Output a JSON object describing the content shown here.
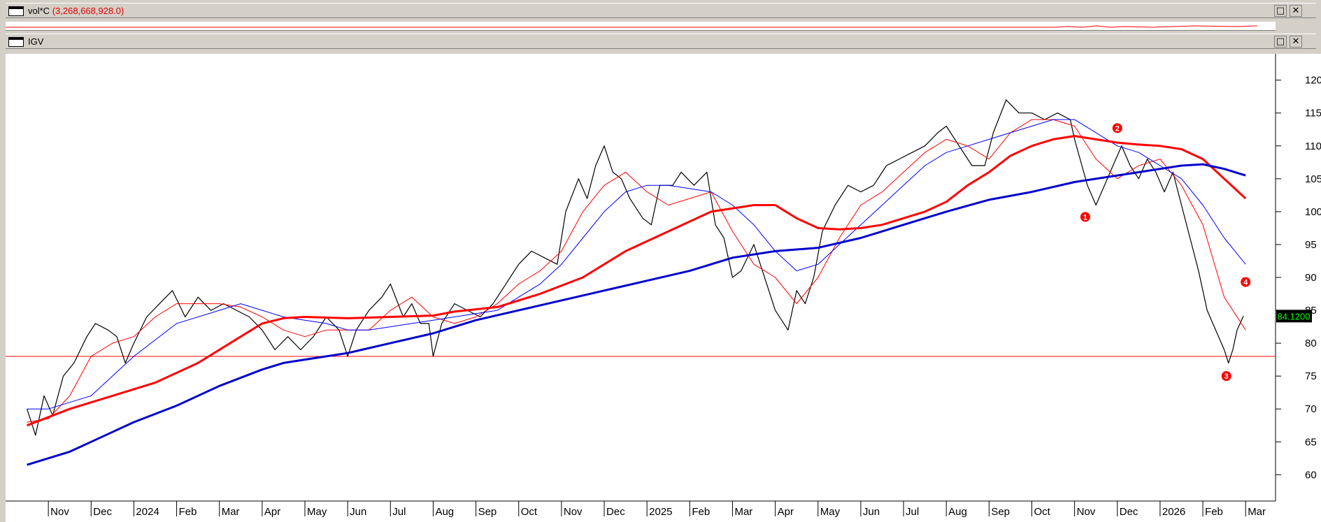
{
  "windows": {
    "volume": {
      "title": "vol*C",
      "value": "(3,268,668,928.0)"
    },
    "price": {
      "title": "IGV"
    }
  },
  "buttons": {
    "maximize": "□",
    "close": "✕"
  },
  "colors": {
    "price": "#000000",
    "ma_fast": "#ff0000",
    "ma_mid": "#0000ff",
    "ma_slow_red": "#ff0000",
    "ma_slow_blue": "#0000cc",
    "support": "#ff0000",
    "last_bg": "#000000",
    "last_fg": "#00ff00"
  },
  "chart_data": {
    "type": "line",
    "title": "IGV",
    "ylim": [
      56,
      124
    ],
    "y_ticks": [
      60,
      65,
      70,
      75,
      80,
      85,
      90,
      95,
      100,
      105,
      110,
      115,
      120
    ],
    "x_ticks": [
      "Nov",
      "Dec",
      "2024",
      "Feb",
      "Mar",
      "Apr",
      "May",
      "Jun",
      "Jul",
      "Aug",
      "Sep",
      "Oct",
      "Nov",
      "Dec",
      "2025",
      "Feb",
      "Mar",
      "Apr",
      "May",
      "Jun",
      "Jul",
      "Aug",
      "Sep",
      "Oct",
      "Nov",
      "Dec",
      "2026",
      "Feb",
      "Mar"
    ],
    "last_value": "84.1200",
    "support_level": 78,
    "markers": [
      {
        "label": "1",
        "month": 24.25,
        "y": 99.2
      },
      {
        "label": "2",
        "month": 25.0,
        "y": 112.7
      },
      {
        "label": "3",
        "month": 27.55,
        "y": 75.0
      },
      {
        "label": "4",
        "month": 28.0,
        "y": 89.3
      }
    ],
    "series": [
      {
        "role": "price",
        "points": [
          [
            -0.5,
            70
          ],
          [
            -0.3,
            66
          ],
          [
            -0.1,
            72
          ],
          [
            0.1,
            69
          ],
          [
            0.35,
            75
          ],
          [
            0.6,
            77
          ],
          [
            0.9,
            81
          ],
          [
            1.1,
            83
          ],
          [
            1.4,
            82
          ],
          [
            1.6,
            81
          ],
          [
            1.8,
            77
          ],
          [
            2.0,
            80
          ],
          [
            2.3,
            84
          ],
          [
            2.6,
            86
          ],
          [
            2.9,
            88
          ],
          [
            3.2,
            84
          ],
          [
            3.5,
            87
          ],
          [
            3.8,
            85
          ],
          [
            4.1,
            86
          ],
          [
            4.4,
            85
          ],
          [
            4.7,
            84
          ],
          [
            5.0,
            82
          ],
          [
            5.3,
            79
          ],
          [
            5.6,
            81
          ],
          [
            5.9,
            79
          ],
          [
            6.2,
            81
          ],
          [
            6.5,
            84
          ],
          [
            6.8,
            82
          ],
          [
            7.0,
            78
          ],
          [
            7.2,
            82
          ],
          [
            7.5,
            85
          ],
          [
            7.8,
            87
          ],
          [
            8.0,
            89
          ],
          [
            8.3,
            84
          ],
          [
            8.5,
            86
          ],
          [
            8.7,
            83
          ],
          [
            8.9,
            83
          ],
          [
            9.0,
            78
          ],
          [
            9.2,
            83
          ],
          [
            9.5,
            86
          ],
          [
            9.8,
            85
          ],
          [
            10.1,
            84
          ],
          [
            10.4,
            86
          ],
          [
            10.7,
            89
          ],
          [
            11.0,
            92
          ],
          [
            11.3,
            94
          ],
          [
            11.6,
            93
          ],
          [
            11.9,
            92
          ],
          [
            12.1,
            100
          ],
          [
            12.4,
            105
          ],
          [
            12.6,
            102
          ],
          [
            12.8,
            107
          ],
          [
            13.0,
            110
          ],
          [
            13.2,
            106
          ],
          [
            13.4,
            105
          ],
          [
            13.6,
            102
          ],
          [
            13.9,
            99
          ],
          [
            14.1,
            98
          ],
          [
            14.3,
            104
          ],
          [
            14.6,
            104
          ],
          [
            14.8,
            106
          ],
          [
            15.1,
            104
          ],
          [
            15.4,
            106
          ],
          [
            15.6,
            98
          ],
          [
            15.8,
            96
          ],
          [
            16.0,
            90
          ],
          [
            16.2,
            91
          ],
          [
            16.5,
            95
          ],
          [
            16.8,
            89
          ],
          [
            17.0,
            85
          ],
          [
            17.3,
            82
          ],
          [
            17.5,
            88
          ],
          [
            17.7,
            86
          ],
          [
            17.9,
            90
          ],
          [
            18.1,
            97
          ],
          [
            18.4,
            101
          ],
          [
            18.7,
            104
          ],
          [
            19.0,
            103
          ],
          [
            19.3,
            104
          ],
          [
            19.6,
            107
          ],
          [
            19.9,
            108
          ],
          [
            20.2,
            109
          ],
          [
            20.5,
            110
          ],
          [
            20.8,
            112
          ],
          [
            21.0,
            113
          ],
          [
            21.3,
            110
          ],
          [
            21.6,
            107
          ],
          [
            21.9,
            107
          ],
          [
            22.1,
            112
          ],
          [
            22.4,
            117
          ],
          [
            22.7,
            115
          ],
          [
            23.0,
            115
          ],
          [
            23.3,
            114
          ],
          [
            23.6,
            115
          ],
          [
            23.9,
            114
          ],
          [
            24.0,
            111
          ],
          [
            24.3,
            104
          ],
          [
            24.5,
            101
          ],
          [
            24.7,
            104
          ],
          [
            24.9,
            107
          ],
          [
            25.1,
            110
          ],
          [
            25.3,
            107
          ],
          [
            25.5,
            105
          ],
          [
            25.7,
            108
          ],
          [
            25.9,
            106
          ],
          [
            26.1,
            103
          ],
          [
            26.3,
            106
          ],
          [
            26.5,
            101
          ],
          [
            26.7,
            96
          ],
          [
            26.9,
            91
          ],
          [
            27.1,
            85
          ],
          [
            27.3,
            82
          ],
          [
            27.5,
            79
          ],
          [
            27.6,
            77
          ],
          [
            27.7,
            79
          ],
          [
            27.8,
            82
          ],
          [
            27.95,
            84.12
          ]
        ]
      },
      {
        "role": "ma_fast",
        "points": [
          [
            -0.5,
            68
          ],
          [
            0.0,
            68.5
          ],
          [
            0.5,
            72
          ],
          [
            1.0,
            78
          ],
          [
            1.5,
            80
          ],
          [
            2.0,
            81
          ],
          [
            2.5,
            84
          ],
          [
            3.0,
            86
          ],
          [
            3.5,
            86
          ],
          [
            4.0,
            86
          ],
          [
            4.5,
            85.5
          ],
          [
            5.0,
            84
          ],
          [
            5.5,
            82
          ],
          [
            6.0,
            81
          ],
          [
            6.5,
            82
          ],
          [
            7.0,
            82
          ],
          [
            7.5,
            82
          ],
          [
            8.0,
            85
          ],
          [
            8.5,
            87
          ],
          [
            9.0,
            84
          ],
          [
            9.5,
            83
          ],
          [
            10.0,
            84
          ],
          [
            10.5,
            86
          ],
          [
            11.0,
            89
          ],
          [
            11.5,
            91
          ],
          [
            12.0,
            94
          ],
          [
            12.5,
            100
          ],
          [
            13.0,
            104
          ],
          [
            13.5,
            106
          ],
          [
            14.0,
            103
          ],
          [
            14.5,
            101
          ],
          [
            15.0,
            102
          ],
          [
            15.5,
            103
          ],
          [
            16.0,
            97
          ],
          [
            16.5,
            92
          ],
          [
            17.0,
            90
          ],
          [
            17.5,
            86
          ],
          [
            18.0,
            90
          ],
          [
            18.5,
            96
          ],
          [
            19.0,
            101
          ],
          [
            19.5,
            103
          ],
          [
            20.0,
            106
          ],
          [
            20.5,
            109
          ],
          [
            21.0,
            111
          ],
          [
            21.5,
            110
          ],
          [
            22.0,
            108
          ],
          [
            22.5,
            112
          ],
          [
            23.0,
            114
          ],
          [
            23.5,
            114
          ],
          [
            24.0,
            113
          ],
          [
            24.5,
            108
          ],
          [
            25.0,
            105
          ],
          [
            25.5,
            107
          ],
          [
            26.0,
            108
          ],
          [
            26.5,
            104
          ],
          [
            27.0,
            98
          ],
          [
            27.5,
            87
          ],
          [
            28.0,
            82
          ]
        ]
      },
      {
        "role": "ma_mid",
        "points": [
          [
            -0.5,
            70
          ],
          [
            0.0,
            70
          ],
          [
            1.0,
            72
          ],
          [
            2.0,
            78
          ],
          [
            3.0,
            83
          ],
          [
            4.0,
            85
          ],
          [
            4.5,
            86
          ],
          [
            5.0,
            85
          ],
          [
            5.5,
            84
          ],
          [
            6.0,
            83.5
          ],
          [
            6.5,
            83
          ],
          [
            7.0,
            82
          ],
          [
            7.5,
            82
          ],
          [
            8.0,
            82.5
          ],
          [
            8.5,
            83
          ],
          [
            9.0,
            83.5
          ],
          [
            9.5,
            84
          ],
          [
            10.0,
            84.5
          ],
          [
            10.5,
            85
          ],
          [
            11.0,
            87
          ],
          [
            11.5,
            89
          ],
          [
            12.0,
            92
          ],
          [
            12.5,
            96
          ],
          [
            13.0,
            100
          ],
          [
            13.5,
            103
          ],
          [
            14.0,
            104
          ],
          [
            14.5,
            104
          ],
          [
            15.0,
            103.5
          ],
          [
            15.5,
            103
          ],
          [
            16.0,
            101
          ],
          [
            16.5,
            98
          ],
          [
            17.0,
            94
          ],
          [
            17.5,
            91
          ],
          [
            18.0,
            92
          ],
          [
            18.5,
            95
          ],
          [
            19.0,
            98
          ],
          [
            19.5,
            101
          ],
          [
            20.0,
            104
          ],
          [
            20.5,
            107
          ],
          [
            21.0,
            109
          ],
          [
            21.5,
            110
          ],
          [
            22.0,
            111
          ],
          [
            22.5,
            112
          ],
          [
            23.0,
            113
          ],
          [
            23.5,
            114
          ],
          [
            24.0,
            114
          ],
          [
            24.5,
            112
          ],
          [
            25.0,
            110
          ],
          [
            25.5,
            109
          ],
          [
            26.0,
            107
          ],
          [
            26.5,
            105
          ],
          [
            27.0,
            101
          ],
          [
            27.5,
            96
          ],
          [
            28.0,
            92
          ]
        ]
      },
      {
        "role": "ma_slow_red",
        "points": [
          [
            -0.5,
            67.5
          ],
          [
            0.5,
            70
          ],
          [
            1.5,
            72
          ],
          [
            2.5,
            74
          ],
          [
            3.5,
            77
          ],
          [
            4.5,
            81
          ],
          [
            5.0,
            83
          ],
          [
            5.5,
            83.8
          ],
          [
            6.0,
            84
          ],
          [
            7.0,
            83.8
          ],
          [
            8.0,
            84
          ],
          [
            9.0,
            84.2
          ],
          [
            9.5,
            84.8
          ],
          [
            10.5,
            85.5
          ],
          [
            11.5,
            87.5
          ],
          [
            12.5,
            90
          ],
          [
            13.5,
            94
          ],
          [
            14.5,
            97
          ],
          [
            15.5,
            100
          ],
          [
            16.5,
            101
          ],
          [
            17.0,
            101
          ],
          [
            17.5,
            99
          ],
          [
            18.0,
            97.5
          ],
          [
            18.5,
            97.3
          ],
          [
            19.0,
            97.5
          ],
          [
            19.5,
            98
          ],
          [
            20.0,
            99
          ],
          [
            20.5,
            100
          ],
          [
            21.0,
            101.5
          ],
          [
            21.5,
            104
          ],
          [
            22.0,
            106
          ],
          [
            22.5,
            108.5
          ],
          [
            23.0,
            110
          ],
          [
            23.5,
            111
          ],
          [
            24.0,
            111.5
          ],
          [
            24.5,
            111
          ],
          [
            25.0,
            110.5
          ],
          [
            25.5,
            110.2
          ],
          [
            26.0,
            110
          ],
          [
            26.5,
            109.5
          ],
          [
            27.0,
            108
          ],
          [
            27.5,
            105
          ],
          [
            28.0,
            102
          ]
        ]
      },
      {
        "role": "ma_slow_blue",
        "points": [
          [
            -0.5,
            61.5
          ],
          [
            0.0,
            62.5
          ],
          [
            0.5,
            63.5
          ],
          [
            1.0,
            65
          ],
          [
            1.5,
            66.5
          ],
          [
            2.0,
            68
          ],
          [
            3.0,
            70.5
          ],
          [
            4.0,
            73.5
          ],
          [
            5.0,
            76
          ],
          [
            5.5,
            77
          ],
          [
            6.0,
            77.5
          ],
          [
            7.0,
            78.5
          ],
          [
            8.0,
            80
          ],
          [
            9.0,
            81.5
          ],
          [
            10.0,
            83.5
          ],
          [
            11.0,
            85
          ],
          [
            12.0,
            86.5
          ],
          [
            13.0,
            88
          ],
          [
            14.0,
            89.5
          ],
          [
            15.0,
            91
          ],
          [
            15.5,
            92
          ],
          [
            16.0,
            93
          ],
          [
            17.0,
            94
          ],
          [
            18.0,
            94.5
          ],
          [
            19.0,
            96
          ],
          [
            20.0,
            98
          ],
          [
            21.0,
            100
          ],
          [
            22.0,
            101.8
          ],
          [
            23.0,
            103
          ],
          [
            24.0,
            104.5
          ],
          [
            25.0,
            105.5
          ],
          [
            26.0,
            106.5
          ],
          [
            26.5,
            107
          ],
          [
            27.0,
            107.2
          ],
          [
            27.5,
            106.5
          ],
          [
            28.0,
            105.5
          ]
        ]
      }
    ]
  }
}
